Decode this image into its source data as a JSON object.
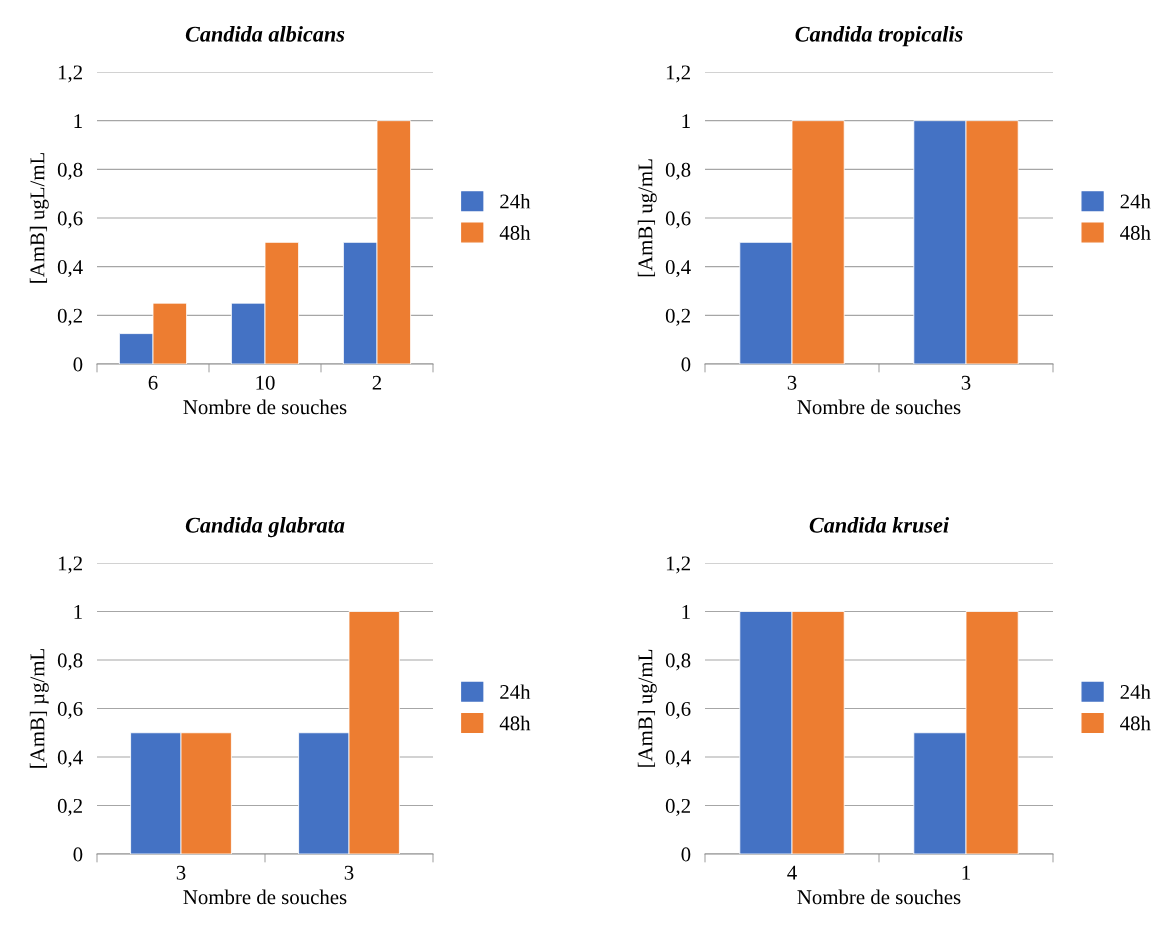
{
  "chart_data": [
    {
      "type": "bar",
      "title": "Candida albicans",
      "xlabel": "Nombre de souches",
      "ylabel": "[AmB] ugL/mL",
      "categories": [
        "6",
        "10",
        "2"
      ],
      "series": [
        {
          "name": "24h",
          "color": "#4472c4",
          "values": [
            0.125,
            0.25,
            0.5
          ]
        },
        {
          "name": "48h",
          "color": "#ed7d31",
          "values": [
            0.25,
            0.5,
            1
          ]
        }
      ],
      "ylim": [
        0,
        1.2
      ],
      "yticks": [
        {
          "value": 0,
          "label": "0"
        },
        {
          "value": 0.2,
          "label": "0,2"
        },
        {
          "value": 0.4,
          "label": "0,4"
        },
        {
          "value": 0.6,
          "label": "0,6"
        },
        {
          "value": 0.8,
          "label": "0,8"
        },
        {
          "value": 1,
          "label": "1"
        },
        {
          "value": 1.2,
          "label": "1,2"
        }
      ],
      "grid": "y",
      "legend": "right"
    },
    {
      "type": "bar",
      "title": "Candida tropicalis",
      "xlabel": "Nombre de souches",
      "ylabel": "[AmB] ug/mL",
      "categories": [
        "3",
        "3"
      ],
      "series": [
        {
          "name": "24h",
          "color": "#4472c4",
          "values": [
            0.5,
            1
          ]
        },
        {
          "name": "48h",
          "color": "#ed7d31",
          "values": [
            1,
            1
          ]
        }
      ],
      "ylim": [
        0,
        1.2
      ],
      "yticks": [
        {
          "value": 0,
          "label": "0"
        },
        {
          "value": 0.2,
          "label": "0,2"
        },
        {
          "value": 0.4,
          "label": "0,4"
        },
        {
          "value": 0.6,
          "label": "0,6"
        },
        {
          "value": 0.8,
          "label": "0,8"
        },
        {
          "value": 1,
          "label": "1"
        },
        {
          "value": 1.2,
          "label": "1,2"
        }
      ],
      "grid": "y",
      "legend": "right"
    },
    {
      "type": "bar",
      "title": "Candida glabrata",
      "xlabel": "Nombre de souches",
      "ylabel": "[AmB] µg/mL",
      "categories": [
        "3",
        "3"
      ],
      "series": [
        {
          "name": "24h",
          "color": "#4472c4",
          "values": [
            0.5,
            0.5
          ]
        },
        {
          "name": "48h",
          "color": "#ed7d31",
          "values": [
            0.5,
            1
          ]
        }
      ],
      "ylim": [
        0,
        1.2
      ],
      "yticks": [
        {
          "value": 0,
          "label": "0"
        },
        {
          "value": 0.2,
          "label": "0,2"
        },
        {
          "value": 0.4,
          "label": "0,4"
        },
        {
          "value": 0.6,
          "label": "0,6"
        },
        {
          "value": 0.8,
          "label": "0,8"
        },
        {
          "value": 1,
          "label": "1"
        },
        {
          "value": 1.2,
          "label": "1,2"
        }
      ],
      "grid": "y",
      "legend": "right"
    },
    {
      "type": "bar",
      "title": "Candida krusei",
      "xlabel": "Nombre de souches",
      "ylabel": "[AmB] ug/mL",
      "categories": [
        "4",
        "1"
      ],
      "series": [
        {
          "name": "24h",
          "color": "#4472c4",
          "values": [
            1,
            0.5
          ]
        },
        {
          "name": "48h",
          "color": "#ed7d31",
          "values": [
            1,
            1
          ]
        }
      ],
      "ylim": [
        0,
        1.2
      ],
      "yticks": [
        {
          "value": 0,
          "label": "0"
        },
        {
          "value": 0.2,
          "label": "0,2"
        },
        {
          "value": 0.4,
          "label": "0,4"
        },
        {
          "value": 0.6,
          "label": "0,6"
        },
        {
          "value": 0.8,
          "label": "0,8"
        },
        {
          "value": 1,
          "label": "1"
        },
        {
          "value": 1.2,
          "label": "1,2"
        }
      ],
      "grid": "y",
      "legend": "right"
    }
  ]
}
